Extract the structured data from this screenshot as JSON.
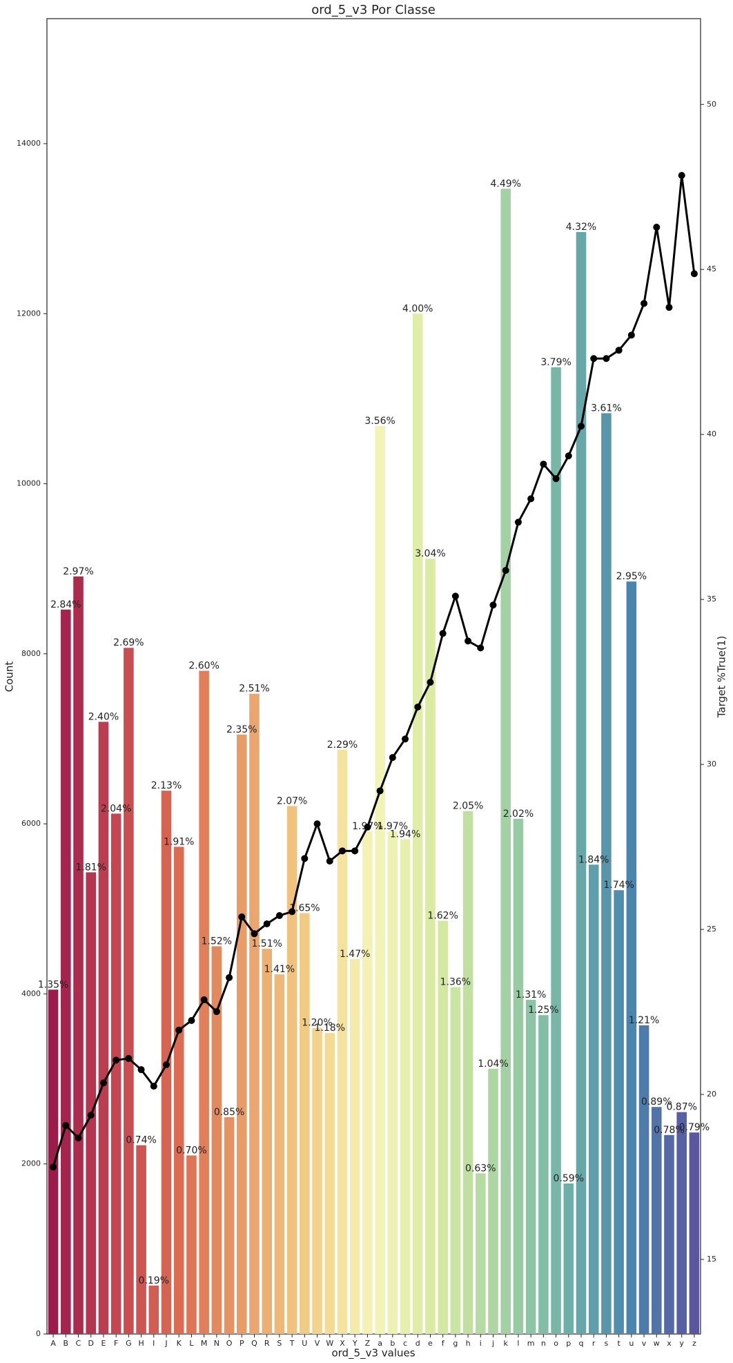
{
  "chart_data": {
    "type": "bar_line",
    "title": "ord_5_v3 Por Classe",
    "x_label": "ord_5_v3 values",
    "y_label": "Count",
    "y2_label": "Target %True(1)",
    "categories": [
      "A",
      "B",
      "C",
      "D",
      "E",
      "F",
      "G",
      "H",
      "I",
      "J",
      "K",
      "L",
      "M",
      "N",
      "O",
      "P",
      "Q",
      "R",
      "S",
      "T",
      "U",
      "V",
      "W",
      "X",
      "Y",
      "Z",
      "a",
      "b",
      "c",
      "d",
      "e",
      "f",
      "g",
      "h",
      "i",
      "j",
      "k",
      "l",
      "m",
      "n",
      "o",
      "p",
      "q",
      "r",
      "s",
      "t",
      "u",
      "v",
      "w",
      "x",
      "y",
      "z"
    ],
    "palette": [
      "#9b1b4a",
      "#c44752",
      "#dc6d52",
      "#e9a06a",
      "#f2cf85",
      "#f5f5b8",
      "#d7eaa0",
      "#a6d3a3",
      "#6fb2a8",
      "#4a86ae",
      "#5a57a0"
    ],
    "series": [
      {
        "values": [
          4050,
          8520,
          8910,
          5430,
          7200,
          6120,
          8070,
          2220,
          570,
          6390,
          5730,
          2100,
          7800,
          4560,
          2550,
          7050,
          7530,
          4530,
          4230,
          6210,
          4950,
          3600,
          3540,
          6870,
          4410,
          5910,
          10680,
          5910,
          5820,
          12000,
          9120,
          4860,
          4080,
          6150,
          1890,
          3120,
          13470,
          6060,
          3930,
          3750,
          11370,
          1770,
          12960,
          5520,
          10830,
          5220,
          8850,
          3630,
          2670,
          2340,
          2610,
          2370
        ],
        "bar_labels": [
          "1.35%",
          "2.84%",
          "2.97%",
          "1.81%",
          "2.40%",
          "2.04%",
          "2.69%",
          "0.74%",
          "0.19%",
          "2.13%",
          "1.91%",
          "0.70%",
          "2.60%",
          "1.52%",
          "0.85%",
          "2.35%",
          "2.51%",
          "1.51%",
          "1.41%",
          "2.07%",
          "1.65%",
          "1.20%",
          "1.18%",
          "2.29%",
          "1.47%",
          "1.97%",
          "3.56%",
          "1.97%",
          "1.94%",
          "4.00%",
          "3.04%",
          "1.62%",
          "1.36%",
          "2.05%",
          "0.63%",
          "1.04%",
          "4.49%",
          "2.02%",
          "1.31%",
          "1.25%",
          "3.79%",
          "0.59%",
          "4.32%",
          "1.84%",
          "3.61%",
          "1.74%",
          "2.95%",
          "1.21%",
          "0.89%",
          "0.78%",
          "0.87%",
          "0.79%"
        ]
      },
      {
        "axis": "y2",
        "color": "#000000",
        "values": [
          17.8,
          19.06,
          18.68,
          19.37,
          20.35,
          21.04,
          21.09,
          20.75,
          20.25,
          20.9,
          21.95,
          22.24,
          22.87,
          22.51,
          23.54,
          25.38,
          24.87,
          25.17,
          25.42,
          25.54,
          27.15,
          28.2,
          27.07,
          27.38,
          27.38,
          28.1,
          29.2,
          30.21,
          30.77,
          31.74,
          32.49,
          33.97,
          35.1,
          33.74,
          33.53,
          34.83,
          35.88,
          37.34,
          38.05,
          39.1,
          38.66,
          39.35,
          40.25,
          42.3,
          42.3,
          42.55,
          43.01,
          43.97,
          46.28,
          43.85,
          47.85,
          44.87
        ]
      }
    ],
    "ylim": [
      0,
      15470
    ],
    "yticks": [
      0,
      2000,
      4000,
      6000,
      8000,
      10000,
      12000,
      14000
    ],
    "y2lim": [
      12.74,
      52.6
    ],
    "y2ticks": [
      15,
      20,
      25,
      30,
      35,
      40,
      45,
      50
    ]
  }
}
